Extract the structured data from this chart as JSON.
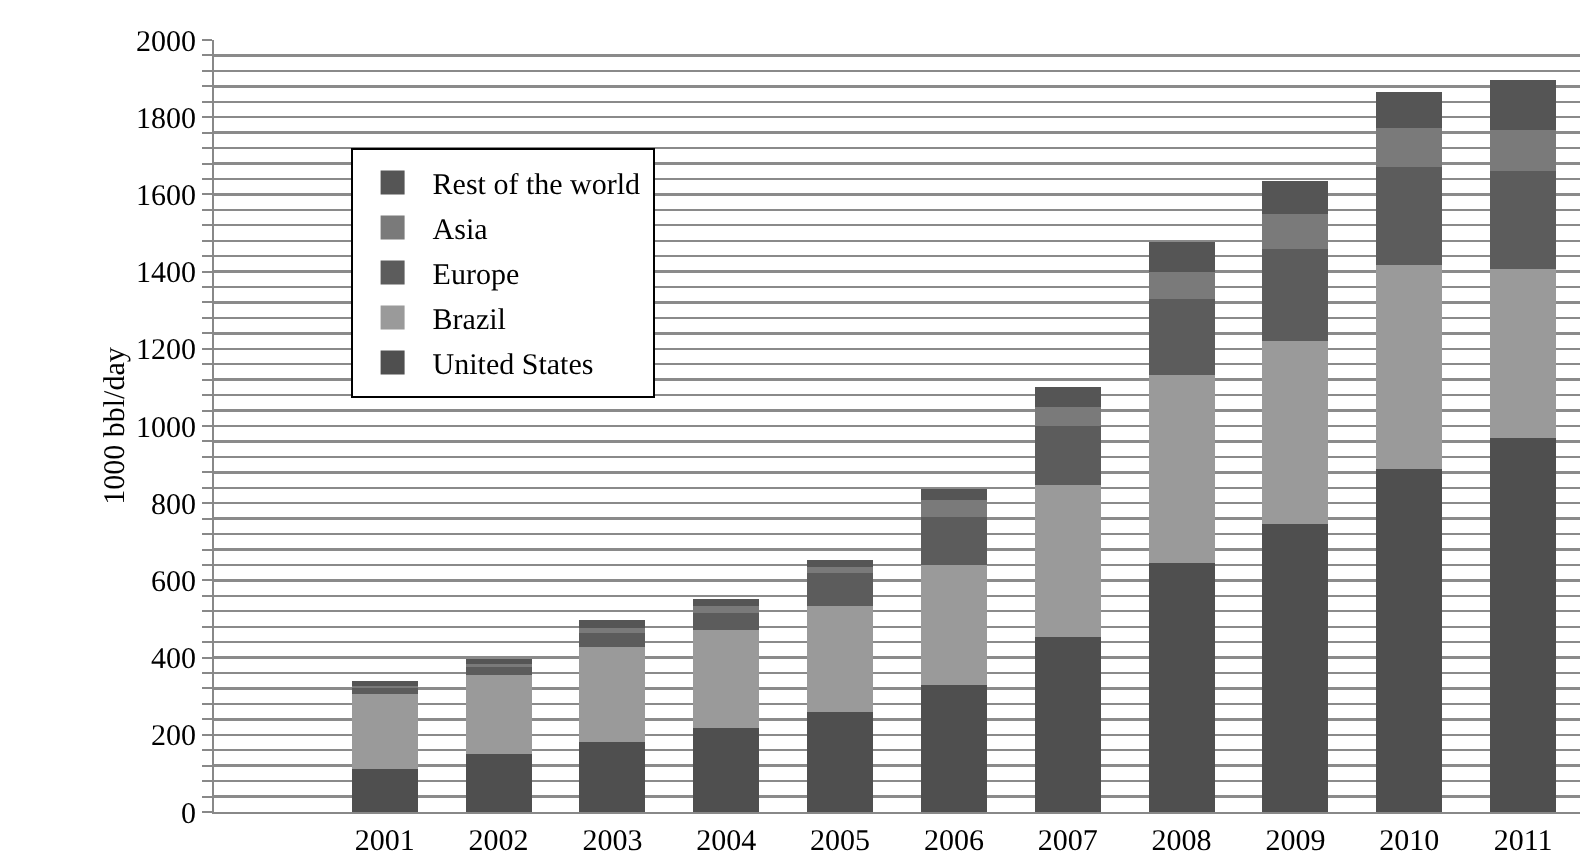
{
  "chart_data": {
    "type": "bar",
    "stacked": true,
    "ylabel": "1000 bbl/day",
    "categories": [
      null,
      "2001",
      "2002",
      "2003",
      "2004",
      "2005",
      "2006",
      "2007",
      "2008",
      "2009",
      "2010",
      "2011"
    ],
    "series": [
      {
        "name": "United States",
        "color": "#4f4f4f",
        "values": [
          null,
          112,
          150,
          181,
          218,
          259,
          330,
          454,
          644,
          745,
          888,
          969
        ]
      },
      {
        "name": "Brazil",
        "color": "#9a9a9a",
        "values": [
          null,
          195,
          206,
          247,
          253,
          276,
          311,
          394,
          489,
          476,
          528,
          439
        ]
      },
      {
        "name": "Europe",
        "color": "#5c5c5c",
        "values": [
          null,
          15,
          20,
          35,
          45,
          85,
          124,
          152,
          196,
          238,
          256,
          252
        ]
      },
      {
        "name": "Asia",
        "color": "#7a7a7a",
        "values": [
          null,
          5,
          8,
          14,
          17,
          16,
          43,
          48,
          70,
          90,
          100,
          107
        ]
      },
      {
        "name": "Rest of the world",
        "color": "#555555",
        "values": [
          null,
          13,
          13,
          20,
          20,
          17,
          30,
          54,
          78,
          85,
          93,
          129
        ]
      }
    ],
    "ylim": [
      0,
      2000
    ],
    "yticks": [
      0,
      {
        "value": 40,
        "label": null
      },
      {
        "value": 80,
        "label": null
      },
      {
        "value": 120,
        "label": null
      },
      {
        "value": 160,
        "label": null
      },
      200,
      {
        "value": 240,
        "label": null
      },
      {
        "value": 280,
        "label": null
      },
      {
        "value": 320,
        "label": null
      },
      {
        "value": 360,
        "label": null
      },
      400,
      {
        "value": 440,
        "label": null
      },
      {
        "value": 480,
        "label": null
      },
      {
        "value": 520,
        "label": null
      },
      {
        "value": 560,
        "label": null
      },
      600,
      {
        "value": 640,
        "label": null
      },
      {
        "value": 680,
        "label": null
      },
      {
        "value": 720,
        "label": null
      },
      {
        "value": 760,
        "label": null
      },
      800,
      {
        "value": 840,
        "label": null
      },
      {
        "value": 880,
        "label": null
      },
      {
        "value": 920,
        "label": null
      },
      {
        "value": 960,
        "label": null
      },
      1000,
      {
        "value": 1040,
        "label": null
      },
      {
        "value": 1080,
        "label": null
      },
      {
        "value": 1120,
        "label": null
      },
      {
        "value": 1160,
        "label": null
      },
      1200,
      {
        "value": 1240,
        "label": null
      },
      {
        "value": 1280,
        "label": null
      },
      {
        "value": 1320,
        "label": null
      },
      {
        "value": 1360,
        "label": null
      },
      1400,
      {
        "value": 1440,
        "label": null
      },
      {
        "value": 1480,
        "label": null
      },
      {
        "value": 1520,
        "label": null
      },
      {
        "value": 1560,
        "label": null
      },
      1600,
      {
        "value": 1640,
        "label": null
      },
      {
        "value": 1680,
        "label": null
      },
      {
        "value": 1720,
        "label": null
      },
      {
        "value": 1760,
        "label": null
      },
      1800,
      {
        "value": 1840,
        "label": null
      },
      {
        "value": 1880,
        "label": null
      },
      {
        "value": 1920,
        "label": null
      },
      {
        "value": 1960,
        "label": null
      },
      2000
    ],
    "grid": "y",
    "legend": "top left"
  }
}
